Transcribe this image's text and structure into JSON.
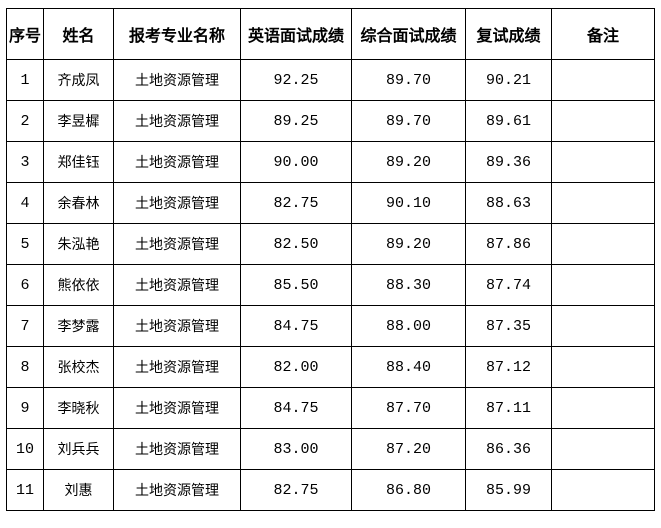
{
  "headers": [
    "序号",
    "姓名",
    "报考专业名称",
    "英语面试成绩",
    "综合面试成绩",
    "复试成绩",
    "备注"
  ],
  "rows": [
    [
      "1",
      "齐成凤",
      "土地资源管理",
      "92.25",
      "89.70",
      "90.21",
      ""
    ],
    [
      "2",
      "李昱樨",
      "土地资源管理",
      "89.25",
      "89.70",
      "89.61",
      ""
    ],
    [
      "3",
      "郑佳钰",
      "土地资源管理",
      "90.00",
      "89.20",
      "89.36",
      ""
    ],
    [
      "4",
      "余春林",
      "土地资源管理",
      "82.75",
      "90.10",
      "88.63",
      ""
    ],
    [
      "5",
      "朱泓艳",
      "土地资源管理",
      "82.50",
      "89.20",
      "87.86",
      ""
    ],
    [
      "6",
      "熊依依",
      "土地资源管理",
      "85.50",
      "88.30",
      "87.74",
      ""
    ],
    [
      "7",
      "李梦露",
      "土地资源管理",
      "84.75",
      "88.00",
      "87.35",
      ""
    ],
    [
      "8",
      "张校杰",
      "土地资源管理",
      "82.00",
      "88.40",
      "87.12",
      ""
    ],
    [
      "9",
      "李晓秋",
      "土地资源管理",
      "84.75",
      "87.70",
      "87.11",
      ""
    ],
    [
      "10",
      "刘兵兵",
      "土地资源管理",
      "83.00",
      "87.20",
      "86.36",
      ""
    ],
    [
      "11",
      "刘惠",
      "土地资源管理",
      "82.75",
      "86.80",
      "85.99",
      ""
    ]
  ]
}
